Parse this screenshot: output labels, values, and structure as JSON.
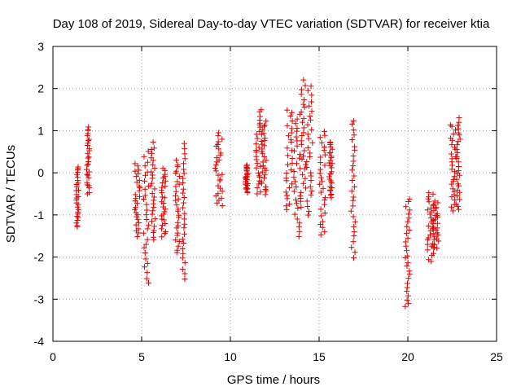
{
  "chart_data": {
    "type": "scatter",
    "title": "Day 108 of 2019, Sidereal Day-to-day VTEC variation (SDTVAR) for receiver ktia",
    "xlabel": "GPS time / hours",
    "ylabel": "SDTVAR / TECUs",
    "xlim": [
      0,
      25
    ],
    "ylim": [
      -4,
      3
    ],
    "xticks": [
      0,
      5,
      10,
      15,
      20,
      25
    ],
    "yticks": [
      -4,
      -3,
      -2,
      -1,
      0,
      1,
      2,
      3
    ],
    "grid": true,
    "marker": "+",
    "color": "#e00000",
    "series": [
      {
        "name": "SDTVAR",
        "clusters": [
          {
            "x": [
              1.3,
              1.45
            ],
            "y": [
              -1.3,
              0.15
            ]
          },
          {
            "x": [
              1.9,
              2.05
            ],
            "y": [
              -0.5,
              1.1
            ]
          },
          {
            "x": [
              4.6,
              4.9
            ],
            "y": [
              -1.5,
              0.2
            ]
          },
          {
            "x": [
              5.1,
              5.4
            ],
            "y": [
              -2.6,
              0.5
            ]
          },
          {
            "x": [
              5.5,
              5.85
            ],
            "y": [
              -1.6,
              0.7
            ]
          },
          {
            "x": [
              6.1,
              6.35
            ],
            "y": [
              -1.5,
              0.1
            ]
          },
          {
            "x": [
              6.9,
              7.15
            ],
            "y": [
              -1.9,
              0.3
            ]
          },
          {
            "x": [
              7.3,
              7.45
            ],
            "y": [
              -2.5,
              0.7
            ]
          },
          {
            "x": [
              9.1,
              9.55
            ],
            "y": [
              -0.8,
              0.95
            ]
          },
          {
            "x": [
              10.85,
              11.0
            ],
            "y": [
              -0.45,
              0.2
            ]
          },
          {
            "x": [
              11.45,
              11.75
            ],
            "y": [
              -0.5,
              1.5
            ]
          },
          {
            "x": [
              11.75,
              12.05
            ],
            "y": [
              -0.5,
              1.2
            ]
          },
          {
            "x": [
              13.1,
              13.5
            ],
            "y": [
              -0.9,
              1.5
            ]
          },
          {
            "x": [
              13.55,
              13.95
            ],
            "y": [
              -1.5,
              1.4
            ]
          },
          {
            "x": [
              13.95,
              14.25
            ],
            "y": [
              -0.8,
              2.2
            ]
          },
          {
            "x": [
              14.3,
              14.65
            ],
            "y": [
              -1.0,
              2.05
            ]
          },
          {
            "x": [
              15.0,
              15.35
            ],
            "y": [
              -1.5,
              1.0
            ]
          },
          {
            "x": [
              15.55,
              15.75
            ],
            "y": [
              -0.6,
              0.75
            ]
          },
          {
            "x": [
              16.8,
              17.05
            ],
            "y": [
              -2.0,
              1.25
            ]
          },
          {
            "x": [
              19.85,
              20.1
            ],
            "y": [
              -3.2,
              -0.6
            ]
          },
          {
            "x": [
              21.1,
              21.45
            ],
            "y": [
              -2.1,
              -0.45
            ]
          },
          {
            "x": [
              21.4,
              21.75
            ],
            "y": [
              -1.8,
              -0.7
            ]
          },
          {
            "x": [
              22.4,
              22.7
            ],
            "y": [
              -0.9,
              1.15
            ]
          },
          {
            "x": [
              22.7,
              22.95
            ],
            "y": [
              -0.9,
              1.3
            ]
          }
        ]
      }
    ]
  }
}
